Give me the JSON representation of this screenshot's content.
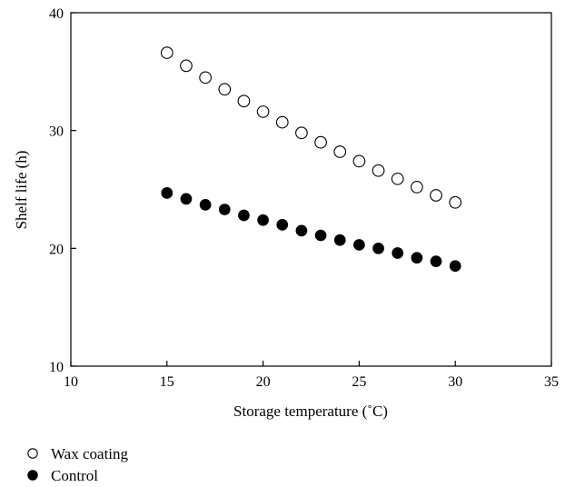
{
  "chart_data": {
    "type": "scatter",
    "xlabel": "Storage temperature (˚C)",
    "ylabel": "Shelf life (h)",
    "xlim": [
      10,
      35
    ],
    "ylim": [
      10,
      40
    ],
    "xticks": [
      "10",
      "15",
      "20",
      "25",
      "30",
      "35"
    ],
    "yticks": [
      "10",
      "20",
      "30",
      "40"
    ],
    "grid": false,
    "legend_position": "bottom-left",
    "series": [
      {
        "name": "Wax coating",
        "marker": "open-circle",
        "color": "#000000",
        "x": [
          15,
          16,
          17,
          18,
          19,
          20,
          21,
          22,
          23,
          24,
          25,
          26,
          27,
          28,
          29,
          30
        ],
        "y": [
          36.6,
          35.5,
          34.5,
          33.5,
          32.5,
          31.6,
          30.7,
          29.8,
          29.0,
          28.2,
          27.4,
          26.6,
          25.9,
          25.2,
          24.5,
          23.9
        ]
      },
      {
        "name": "Control",
        "marker": "filled-circle",
        "color": "#000000",
        "x": [
          15,
          16,
          17,
          18,
          19,
          20,
          21,
          22,
          23,
          24,
          25,
          26,
          27,
          28,
          29,
          30
        ],
        "y": [
          24.7,
          24.2,
          23.7,
          23.3,
          22.8,
          22.4,
          22.0,
          21.5,
          21.1,
          20.7,
          20.3,
          20.0,
          19.6,
          19.2,
          18.9,
          18.5
        ]
      }
    ]
  }
}
